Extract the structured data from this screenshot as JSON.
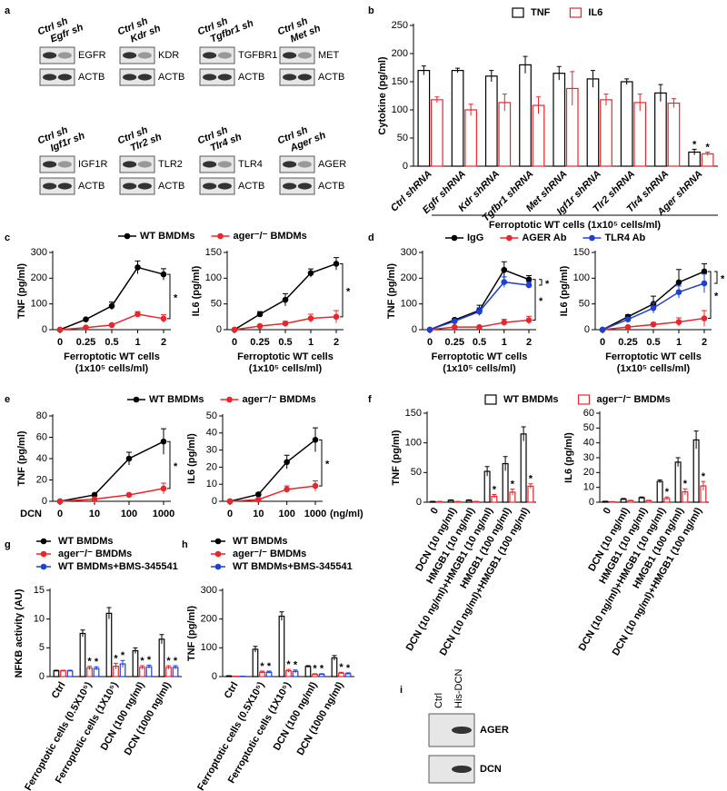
{
  "panels": [
    "a",
    "b",
    "c",
    "d",
    "e",
    "f",
    "g",
    "h",
    "i"
  ],
  "blots": [
    {
      "lanes": [
        "Ctrl sh",
        "Egfr sh"
      ],
      "proteins": [
        "EGFR",
        "ACTB"
      ]
    },
    {
      "lanes": [
        "Ctrl sh",
        "Kdr sh"
      ],
      "proteins": [
        "KDR",
        "ACTB"
      ]
    },
    {
      "lanes": [
        "Ctrl sh",
        "Tgfbr1 sh"
      ],
      "proteins": [
        "TGFBR1",
        "ACTB"
      ]
    },
    {
      "lanes": [
        "Ctrl sh",
        "Met sh"
      ],
      "proteins": [
        "MET",
        "ACTB"
      ]
    },
    {
      "lanes": [
        "Ctrl sh",
        "Igf1r sh"
      ],
      "proteins": [
        "IGF1R",
        "ACTB"
      ]
    },
    {
      "lanes": [
        "Ctrl sh",
        "Tlr2 sh"
      ],
      "proteins": [
        "TLR2",
        "ACTB"
      ]
    },
    {
      "lanes": [
        "Ctrl sh",
        "Tlr4 sh"
      ],
      "proteins": [
        "TLR4",
        "ACTB"
      ]
    },
    {
      "lanes": [
        "Ctrl sh",
        "Ager sh"
      ],
      "proteins": [
        "AGER",
        "ACTB"
      ]
    }
  ],
  "blot_i": {
    "lanes": [
      "Ctrl",
      "His-DCN"
    ],
    "proteins": [
      "AGER",
      "DCN"
    ]
  },
  "chart_data": [
    {
      "type": "bar",
      "ylabel": "Cytokine (pg/ml)",
      "categories": [
        "Ctrl shRNA",
        "Egfr shRNA",
        "Kdr shRNA",
        "Tgfbr1 shRNA",
        "Met shRNA",
        "Igf1r shRNA",
        "Tlr2 shRNA",
        "Tlr4 shRNA",
        "Ager shRNA"
      ],
      "series": [
        {
          "name": "TNF",
          "color": "#000000",
          "values": [
            170,
            170,
            160,
            180,
            165,
            155,
            150,
            130,
            25
          ],
          "errors": [
            8,
            4,
            10,
            15,
            12,
            15,
            5,
            15,
            5
          ],
          "stars": [
            null,
            null,
            null,
            null,
            null,
            null,
            null,
            null,
            "*"
          ]
        },
        {
          "name": "IL6",
          "color": "#e8262b",
          "values": [
            118,
            100,
            113,
            108,
            138,
            118,
            113,
            112,
            22
          ],
          "errors": [
            5,
            10,
            15,
            15,
            30,
            10,
            15,
            8,
            3
          ],
          "stars": [
            null,
            null,
            null,
            null,
            null,
            null,
            null,
            null,
            "*"
          ]
        }
      ],
      "ylim": [
        0,
        250
      ],
      "yticks": [
        0,
        50,
        100,
        150,
        200,
        250
      ],
      "legend": "top",
      "xlabel": "Ferroptotic WT cells (1x10⁵ cells/ml)",
      "rotate": 45,
      "italic_categories": true
    },
    {
      "type": "line",
      "ylabel": "TNF (pg/ml)",
      "categories": [
        "0",
        "0.25",
        "0.5",
        "1",
        "2"
      ],
      "series": [
        {
          "name": "WT BMDMs",
          "color": "#000000",
          "values": [
            0,
            40,
            92,
            242,
            215
          ],
          "errors": [
            2,
            5,
            15,
            25,
            22
          ]
        },
        {
          "name": "ager⁻/⁻ BMDMs",
          "color": "#e8262b",
          "values": [
            0,
            8,
            18,
            60,
            43
          ],
          "errors": [
            1,
            3,
            5,
            10,
            15
          ]
        }
      ],
      "ylim": [
        0,
        300
      ],
      "yticks": [
        0,
        100,
        200,
        300
      ],
      "legend": "top",
      "xlabel_lines": [
        "Ferroptotic WT cells",
        "(1x10⁵ cells/ml)"
      ],
      "annotations": [
        "*"
      ]
    },
    {
      "type": "line",
      "ylabel": "IL6 (pg/ml)",
      "categories": [
        "0",
        "0.25",
        "0.5",
        "1",
        "2"
      ],
      "series": [
        {
          "color": "#000000",
          "values": [
            0,
            30,
            58,
            110,
            128
          ],
          "errors": [
            1,
            5,
            12,
            8,
            12
          ]
        },
        {
          "color": "#e8262b",
          "values": [
            0,
            7,
            12,
            22,
            25
          ],
          "errors": [
            1,
            2,
            4,
            8,
            12
          ]
        }
      ],
      "ylim": [
        0,
        150
      ],
      "yticks": [
        0,
        50,
        100,
        150
      ],
      "xlabel_lines": [
        "Ferroptotic WT cells",
        "(1x10⁵ cells/ml)"
      ],
      "annotations": [
        "*"
      ]
    },
    {
      "type": "line",
      "ylabel": "TNF (pg/ml)",
      "categories": [
        "0",
        "0.25",
        "0.5",
        "1",
        "2"
      ],
      "series": [
        {
          "name": "IgG",
          "color": "#000000",
          "values": [
            0,
            38,
            75,
            232,
            195
          ],
          "errors": [
            2,
            5,
            20,
            32,
            15
          ]
        },
        {
          "name": "AGER Ab",
          "color": "#e8262b",
          "values": [
            0,
            10,
            10,
            28,
            37
          ],
          "errors": [
            1,
            3,
            4,
            12,
            15
          ]
        },
        {
          "name": "TLR4 Ab",
          "color": "#1f3fd6",
          "values": [
            0,
            33,
            70,
            185,
            173
          ],
          "errors": [
            2,
            5,
            15,
            20,
            12
          ]
        }
      ],
      "ylim": [
        0,
        300
      ],
      "yticks": [
        0,
        100,
        200,
        300
      ],
      "legend": "top",
      "xlabel_lines": [
        "Ferroptotic WT cells",
        "(1x10⁵ cells/ml)"
      ],
      "annotations": [
        "*",
        "*"
      ]
    },
    {
      "type": "line",
      "ylabel": "IL6 (pg/ml)",
      "categories": [
        "0",
        "0.25",
        "0.5",
        "1",
        "2"
      ],
      "series": [
        {
          "color": "#000000",
          "values": [
            0,
            25,
            50,
            92,
            113
          ],
          "errors": [
            1,
            4,
            15,
            25,
            15
          ]
        },
        {
          "color": "#e8262b",
          "values": [
            0,
            5,
            10,
            15,
            22
          ],
          "errors": [
            1,
            2,
            4,
            8,
            15
          ]
        },
        {
          "color": "#1f3fd6",
          "values": [
            0,
            20,
            42,
            73,
            90
          ],
          "errors": [
            1,
            4,
            10,
            12,
            18
          ]
        }
      ],
      "ylim": [
        0,
        150
      ],
      "yticks": [
        0,
        50,
        100,
        150
      ],
      "xlabel_lines": [
        "Ferroptotic WT cells",
        "(1x10⁵ cells/ml)"
      ],
      "annotations": [
        "*",
        "*"
      ]
    },
    {
      "type": "line",
      "ylabel": "TNF (pg/ml)",
      "categories": [
        "0",
        "10",
        "100",
        "1000"
      ],
      "series": [
        {
          "name": "WT BMDMs",
          "color": "#000000",
          "values": [
            0,
            6,
            40,
            56
          ],
          "errors": [
            0.5,
            1,
            6,
            12
          ]
        },
        {
          "name": "ager⁻/⁻ BMDMs",
          "color": "#e8262b",
          "values": [
            0,
            2,
            6,
            12
          ],
          "errors": [
            0.3,
            0.5,
            1,
            5
          ]
        }
      ],
      "ylim": [
        0,
        80
      ],
      "yticks": [
        0,
        20,
        40,
        60,
        80
      ],
      "legend": "top",
      "x_prefix": "DCN",
      "annotations": [
        "*"
      ]
    },
    {
      "type": "line",
      "ylabel": "IL6 (pg/ml)",
      "categories": [
        "0",
        "10",
        "100",
        "1000"
      ],
      "series": [
        {
          "color": "#000000",
          "values": [
            0,
            4,
            23,
            36
          ],
          "errors": [
            0.3,
            1,
            4,
            7
          ]
        },
        {
          "color": "#e8262b",
          "values": [
            0,
            1,
            7,
            9
          ],
          "errors": [
            0.2,
            0.5,
            2,
            3
          ]
        }
      ],
      "ylim": [
        0,
        50
      ],
      "yticks": [
        0,
        10,
        20,
        30,
        40,
        50
      ],
      "x_suffix": "(ng/ml)",
      "annotations": [
        "*"
      ]
    },
    {
      "type": "bar",
      "ylabel": "TNF (pg/ml)",
      "categories": [
        "0",
        "DCN (10 ng/ml)",
        "HMGB1 (10 ng/ml)",
        "DCN (10 ng/ml)+HMGB1 (10 ng/ml)",
        "HMGB1 (100 ng/ml)",
        "DCN (10 ng/ml)+HMGB1 (100 ng/ml)"
      ],
      "series": [
        {
          "name": "WT BMDMs",
          "color": "#000000",
          "values": [
            1,
            3,
            3,
            52,
            65,
            115
          ],
          "errors": [
            0.5,
            1,
            1,
            8,
            12,
            12
          ],
          "stars": [
            null,
            null,
            null,
            null,
            null,
            null
          ]
        },
        {
          "name": "ager⁻/⁻ BMDMs",
          "color": "#e8262b",
          "values": [
            1,
            1,
            1,
            10,
            17,
            27
          ],
          "errors": [
            0.3,
            0.3,
            0.3,
            3,
            5,
            4
          ],
          "stars": [
            null,
            null,
            null,
            "*",
            "*",
            "*"
          ]
        }
      ],
      "ylim": [
        0,
        150
      ],
      "yticks": [
        0,
        50,
        100,
        150
      ],
      "legend": "top",
      "rotate": 60
    },
    {
      "type": "bar",
      "ylabel": "IL6 (pg/ml)",
      "categories": [
        "0",
        "DCN (10 ng/ml)",
        "HMGB1 (10 ng/ml)",
        "DCN (10 ng/ml)+HMGB1 (10 ng/ml)",
        "HMGB1 (100 ng/ml)",
        "DCN (10 ng/ml)+HMGB1 (100 ng/ml)"
      ],
      "series": [
        {
          "color": "#000000",
          "values": [
            0.5,
            2,
            3,
            14,
            27,
            42
          ],
          "errors": [
            0.2,
            0.5,
            0.5,
            1,
            3,
            6
          ],
          "stars": [
            null,
            null,
            null,
            null,
            null,
            null
          ]
        },
        {
          "color": "#e8262b",
          "values": [
            0.3,
            1,
            1,
            2.5,
            7,
            11
          ],
          "errors": [
            0.1,
            0.3,
            0.3,
            1,
            2,
            3
          ],
          "stars": [
            null,
            null,
            null,
            "*",
            "*",
            "*"
          ]
        }
      ],
      "ylim": [
        0,
        60
      ],
      "yticks": [
        0,
        10,
        20,
        30,
        40,
        50,
        60
      ],
      "rotate": 60
    },
    {
      "type": "bar",
      "ylabel": "NFKB activity (AU)",
      "categories": [
        "Ctrl",
        "Ferroptotic cells (0.5X10⁵)",
        "Ferroptotic cells (1X10⁵)",
        "DCN (100 ng/ml)",
        "DCN (1000 ng/ml)"
      ],
      "series": [
        {
          "name": "WT BMDMs",
          "color": "#000000",
          "values": [
            1,
            7.5,
            11,
            4.5,
            6.5
          ],
          "errors": [
            0.1,
            0.6,
            1,
            0.5,
            0.8
          ],
          "stars": [
            null,
            null,
            null,
            null,
            null
          ]
        },
        {
          "name": "ager⁻/⁻ BMDMs",
          "color": "#e8262b",
          "values": [
            1,
            1.5,
            1.8,
            1.6,
            1.6
          ],
          "errors": [
            0.1,
            0.3,
            0.5,
            0.3,
            0.3
          ],
          "stars": [
            null,
            "*",
            "*",
            "*",
            "*"
          ]
        },
        {
          "name": "WT BMDMs+BMS-345541",
          "color": "#1f3fd6",
          "values": [
            1,
            1.4,
            2.2,
            1.7,
            1.6
          ],
          "errors": [
            0.1,
            0.3,
            0.6,
            0.3,
            0.3
          ],
          "stars": [
            null,
            "*",
            "*",
            "*",
            "*"
          ]
        }
      ],
      "ylim": [
        0,
        15
      ],
      "yticks": [
        0,
        5,
        10,
        15
      ],
      "legend": "stacked",
      "rotate": 60
    },
    {
      "type": "bar",
      "ylabel": "TNF (pg/ml)",
      "categories": [
        "Ctrl",
        "Ferroptotic cells (0.5X10⁵)",
        "Ferroptotic cells (1X10⁵)",
        "DCN (100 ng/ml)",
        "DCN (1000 ng/ml)"
      ],
      "series": [
        {
          "name": "WT BMDMs",
          "color": "#000000",
          "values": [
            2,
            95,
            210,
            35,
            65
          ],
          "errors": [
            1,
            10,
            15,
            3,
            8
          ],
          "stars": [
            null,
            null,
            null,
            null,
            null
          ]
        },
        {
          "name": "ager⁻/⁻ BMDMs",
          "color": "#e8262b",
          "values": [
            1,
            15,
            20,
            8,
            12
          ],
          "errors": [
            0.5,
            4,
            5,
            2,
            3
          ],
          "stars": [
            null,
            "*",
            "*",
            "*",
            "*"
          ]
        },
        {
          "name": "WT BMDMs+BMS-345541",
          "color": "#1f3fd6",
          "values": [
            1,
            15,
            18,
            8,
            10
          ],
          "errors": [
            0.5,
            4,
            5,
            2,
            3
          ],
          "stars": [
            null,
            "*",
            "*",
            "*",
            "*"
          ]
        }
      ],
      "ylim": [
        0,
        300
      ],
      "yticks": [
        0,
        100,
        200,
        300
      ],
      "legend": "stacked",
      "rotate": 60
    }
  ]
}
